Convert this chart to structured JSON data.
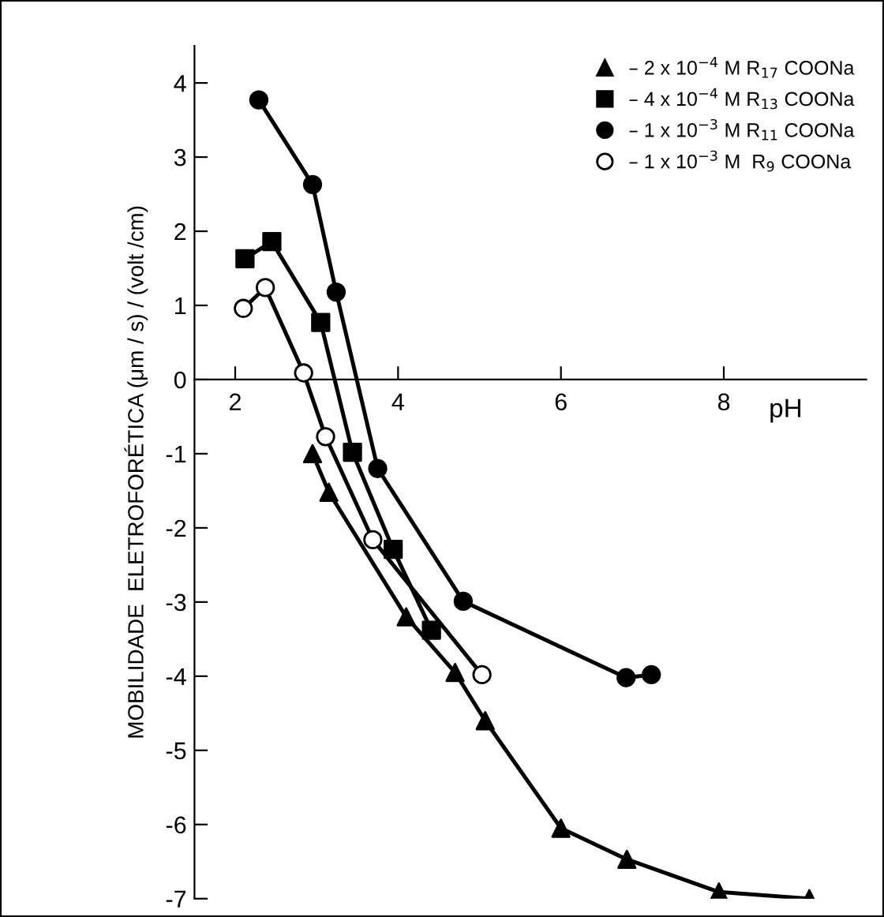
{
  "chart_data": {
    "type": "line",
    "xlabel": "pH",
    "ylabel": "MOBILIDADE  ELETROFORÉTICA (μm / s) / (volt /cm)",
    "xlim": [
      1.5,
      9.75
    ],
    "ylim": [
      -7,
      4.5
    ],
    "xticks": [
      2,
      4,
      6,
      8
    ],
    "yticks": [
      -7,
      -6,
      -5,
      -4,
      -3,
      -2,
      -1,
      0,
      1,
      2,
      3,
      4
    ],
    "grid": false,
    "legend": "top right",
    "line_style": "solid",
    "series": [
      {
        "name": "– 2 x 10$^{−4}$ M R$_{17}$ COONa",
        "color": "#000000",
        "marker": "triangle",
        "x": [
          2.95,
          3.15,
          4.1,
          4.7,
          5.07,
          6.0,
          6.81,
          7.94,
          9.05
        ],
        "values": [
          -1.0,
          -1.52,
          -3.2,
          -3.95,
          -4.6,
          -6.05,
          -6.47,
          -6.91,
          -7.0
        ]
      },
      {
        "name": "– 4 x 10$^{−4}$ M R$_{13}$ COONa",
        "color": "#000000",
        "marker": "square",
        "x": [
          2.12,
          2.45,
          3.05,
          3.44,
          3.94,
          4.41
        ],
        "values": [
          1.63,
          1.86,
          0.77,
          -0.98,
          -2.29,
          -3.38
        ]
      },
      {
        "name": "– 1 x 10$^{−3}$ M R$_{11}$ COONa",
        "color": "#000000",
        "marker": "circle",
        "x": [
          2.29,
          2.95,
          3.24,
          3.75,
          4.8,
          6.8,
          7.11
        ],
        "values": [
          3.77,
          2.63,
          1.18,
          -1.2,
          -2.99,
          -4.02,
          -3.98
        ]
      },
      {
        "name": "– 1 x 10$^{−3}$ M  R$_{9}$ COONa",
        "color": "#ffffff",
        "marker": "circle",
        "x": [
          2.1,
          2.37,
          2.84,
          3.11,
          3.69,
          5.03
        ],
        "values": [
          0.96,
          1.24,
          0.09,
          -0.77,
          -2.16,
          -3.98
        ]
      }
    ]
  }
}
